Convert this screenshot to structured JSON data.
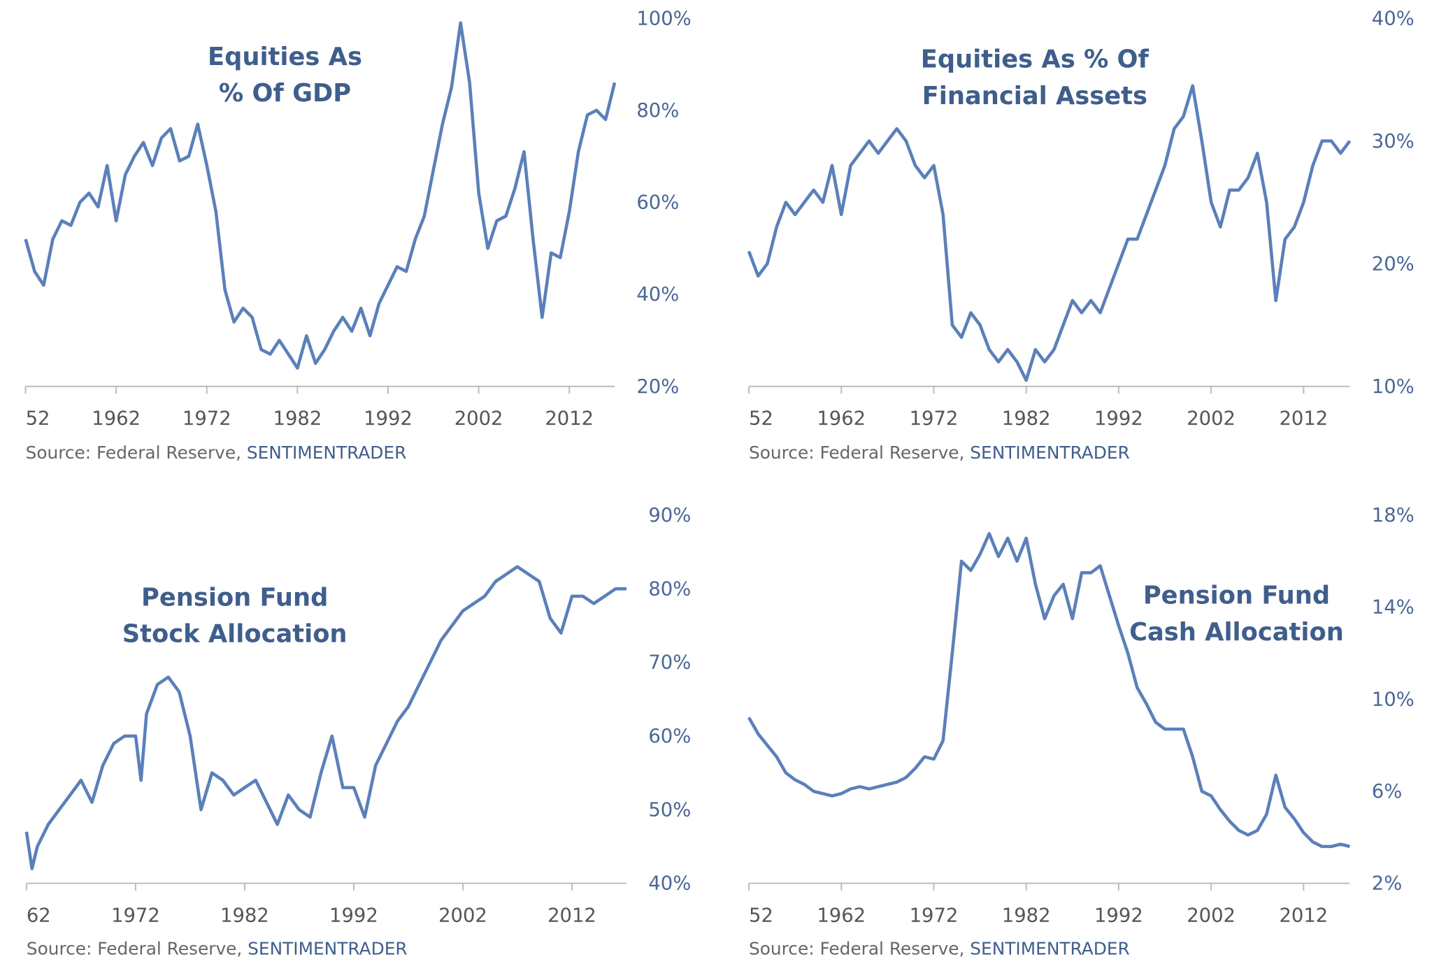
{
  "chart_data": [
    {
      "type": "line",
      "title": [
        "Equities As",
        "% Of GDP"
      ],
      "source": "Source: Federal Reserve, ",
      "source_brand": "SENTIMENTRADER",
      "color": "#5b80b9",
      "x": [
        1952,
        1953,
        1954,
        1955,
        1956,
        1957,
        1958,
        1959,
        1960,
        1961,
        1962,
        1963,
        1964,
        1965,
        1966,
        1967,
        1968,
        1969,
        1970,
        1971,
        1972,
        1973,
        1974,
        1975,
        1976,
        1977,
        1978,
        1979,
        1980,
        1981,
        1982,
        1983,
        1984,
        1985,
        1986,
        1987,
        1988,
        1989,
        1990,
        1991,
        1992,
        1993,
        1994,
        1995,
        1996,
        1997,
        1998,
        1999,
        2000,
        2001,
        2002,
        2003,
        2004,
        2005,
        2006,
        2007,
        2008,
        2009,
        2010,
        2011,
        2012,
        2013,
        2014,
        2015,
        2016,
        2017
      ],
      "values": [
        52,
        45,
        42,
        52,
        56,
        55,
        60,
        62,
        59,
        68,
        56,
        66,
        70,
        73,
        68,
        74,
        76,
        69,
        70,
        77,
        68,
        58,
        41,
        34,
        37,
        35,
        28,
        27,
        30,
        27,
        24,
        31,
        25,
        28,
        32,
        35,
        32,
        37,
        31,
        38,
        42,
        46,
        45,
        52,
        57,
        67,
        77,
        85,
        99,
        86,
        62,
        50,
        56,
        57,
        63,
        71,
        52,
        35,
        49,
        48,
        58,
        71,
        79,
        80,
        78,
        86
      ],
      "xlim": [
        1952,
        2017
      ],
      "xticks": [
        {
          "value": 1952,
          "label": "52"
        },
        1962,
        1972,
        1982,
        1992,
        2002,
        2012
      ],
      "ylim": [
        20,
        100
      ],
      "yticks": [
        {
          "value": 20,
          "label": "20%"
        },
        {
          "value": 40,
          "label": "40%"
        },
        {
          "value": 60,
          "label": "60%"
        },
        {
          "value": 80,
          "label": "80%"
        },
        {
          "value": 100,
          "label": "100%"
        }
      ]
    },
    {
      "type": "line",
      "title": [
        "Equities As % Of",
        "Financial Assets"
      ],
      "source": "Source: Federal Reserve, ",
      "source_brand": "SENTIMENTRADER",
      "color": "#5b80b9",
      "x": [
        1952,
        1953,
        1954,
        1955,
        1956,
        1957,
        1958,
        1959,
        1960,
        1961,
        1962,
        1963,
        1964,
        1965,
        1966,
        1967,
        1968,
        1969,
        1970,
        1971,
        1972,
        1973,
        1974,
        1975,
        1976,
        1977,
        1978,
        1979,
        1980,
        1981,
        1982,
        1983,
        1984,
        1985,
        1986,
        1987,
        1988,
        1989,
        1990,
        1991,
        1992,
        1993,
        1994,
        1995,
        1996,
        1997,
        1998,
        1999,
        2000,
        2001,
        2002,
        2003,
        2004,
        2005,
        2006,
        2007,
        2008,
        2009,
        2010,
        2011,
        2012,
        2013,
        2014,
        2015,
        2016,
        2017
      ],
      "values": [
        21,
        19,
        20,
        23,
        25,
        24,
        25,
        26,
        25,
        28,
        24,
        28,
        29,
        30,
        29,
        30,
        31,
        30,
        28,
        27,
        28,
        24,
        15,
        14,
        16,
        15,
        13,
        12,
        13,
        12,
        10.5,
        13,
        12,
        13,
        15,
        17,
        16,
        17,
        16,
        18,
        20,
        22,
        22,
        24,
        26,
        28,
        31,
        32,
        34.5,
        30,
        25,
        23,
        26,
        26,
        27,
        29,
        25,
        17,
        22,
        23,
        25,
        28,
        30,
        30,
        29,
        30
      ],
      "xlim": [
        1952,
        2017
      ],
      "xticks": [
        {
          "value": 1952,
          "label": "52"
        },
        1962,
        1972,
        1982,
        1992,
        2002,
        2012
      ],
      "ylim": [
        10,
        40
      ],
      "yticks": [
        {
          "value": 10,
          "label": "10%"
        },
        {
          "value": 20,
          "label": "20%"
        },
        {
          "value": 30,
          "label": "30%"
        },
        {
          "value": 40,
          "label": "40%"
        }
      ]
    },
    {
      "type": "line",
      "title": [
        "Pension Fund",
        "Stock Allocation"
      ],
      "source": "Source: Federal Reserve, ",
      "source_brand": "SENTIMENTRADER",
      "color": "#5b80b9",
      "x": [
        1962,
        1962.5,
        1963,
        1964,
        1965,
        1966,
        1967,
        1968,
        1969,
        1970,
        1971,
        1972,
        1972.5,
        1973,
        1974,
        1975,
        1976,
        1977,
        1978,
        1979,
        1980,
        1981,
        1982,
        1983,
        1984,
        1985,
        1986,
        1987,
        1988,
        1989,
        1990,
        1991,
        1992,
        1993,
        1994,
        1995,
        1996,
        1997,
        1998,
        1999,
        2000,
        2001,
        2002,
        2003,
        2004,
        2005,
        2006,
        2007,
        2008,
        2009,
        2010,
        2011,
        2012,
        2013,
        2014,
        2015,
        2016,
        2017
      ],
      "values": [
        47,
        42,
        45,
        48,
        50,
        52,
        54,
        51,
        56,
        59,
        60,
        60,
        54,
        63,
        67,
        68,
        66,
        60,
        50,
        55,
        54,
        52,
        53,
        54,
        51,
        48,
        52,
        50,
        49,
        55,
        60,
        53,
        53,
        49,
        56,
        59,
        62,
        64,
        67,
        70,
        73,
        75,
        77,
        78,
        79,
        81,
        82,
        83,
        82,
        81,
        76,
        74,
        79,
        79,
        78,
        79,
        80,
        80
      ],
      "xlim": [
        1962,
        2017
      ],
      "xticks": [
        {
          "value": 1962,
          "label": "62"
        },
        1972,
        1982,
        1992,
        2002,
        2012
      ],
      "ylim": [
        40,
        90
      ],
      "yticks": [
        {
          "value": 40,
          "label": "40%"
        },
        {
          "value": 50,
          "label": "50%"
        },
        {
          "value": 60,
          "label": "60%"
        },
        {
          "value": 70,
          "label": "70%"
        },
        {
          "value": 80,
          "label": "80%"
        },
        {
          "value": 90,
          "label": "90%"
        }
      ]
    },
    {
      "type": "line",
      "title": [
        "Pension Fund",
        "Cash Allocation"
      ],
      "source": "Source: Federal Reserve, ",
      "source_brand": "SENTIMENTRADER",
      "color": "#5b80b9",
      "x": [
        1952,
        1953,
        1954,
        1955,
        1956,
        1957,
        1958,
        1959,
        1960,
        1961,
        1962,
        1963,
        1964,
        1965,
        1966,
        1967,
        1968,
        1969,
        1970,
        1971,
        1972,
        1973,
        1974,
        1975,
        1976,
        1977,
        1978,
        1979,
        1980,
        1981,
        1982,
        1983,
        1984,
        1985,
        1986,
        1987,
        1988,
        1989,
        1990,
        1991,
        1992,
        1993,
        1994,
        1995,
        1996,
        1997,
        1998,
        1999,
        2000,
        2001,
        2002,
        2003,
        2004,
        2005,
        2006,
        2007,
        2008,
        2009,
        2010,
        2011,
        2012,
        2013,
        2014,
        2015,
        2016,
        2017
      ],
      "values": [
        9.2,
        8.5,
        8,
        7.5,
        6.8,
        6.5,
        6.3,
        6,
        5.9,
        5.8,
        5.9,
        6.1,
        6.2,
        6.1,
        6.2,
        6.3,
        6.4,
        6.6,
        7,
        7.5,
        7.4,
        8.2,
        12,
        16,
        15.6,
        16.3,
        17.2,
        16.2,
        17,
        16,
        17,
        15,
        13.5,
        14.5,
        15,
        13.5,
        15.5,
        15.5,
        15.8,
        14.5,
        13.2,
        12,
        10.5,
        9.8,
        9,
        8.7,
        8.7,
        8.7,
        7.5,
        6,
        5.8,
        5.2,
        4.7,
        4.3,
        4.1,
        4.3,
        5,
        6.7,
        5.3,
        4.8,
        4.2,
        3.8,
        3.6,
        3.6,
        3.7,
        3.6
      ],
      "xlim": [
        1952,
        2017
      ],
      "xticks": [
        {
          "value": 1952,
          "label": "52"
        },
        1962,
        1972,
        1982,
        1992,
        2002,
        2012
      ],
      "ylim": [
        2,
        18
      ],
      "yticks": [
        {
          "value": 2,
          "label": "2%"
        },
        {
          "value": 6,
          "label": "6%"
        },
        {
          "value": 10,
          "label": "10%"
        },
        {
          "value": 14,
          "label": "14%"
        },
        {
          "value": 18,
          "label": "18%"
        }
      ]
    }
  ]
}
